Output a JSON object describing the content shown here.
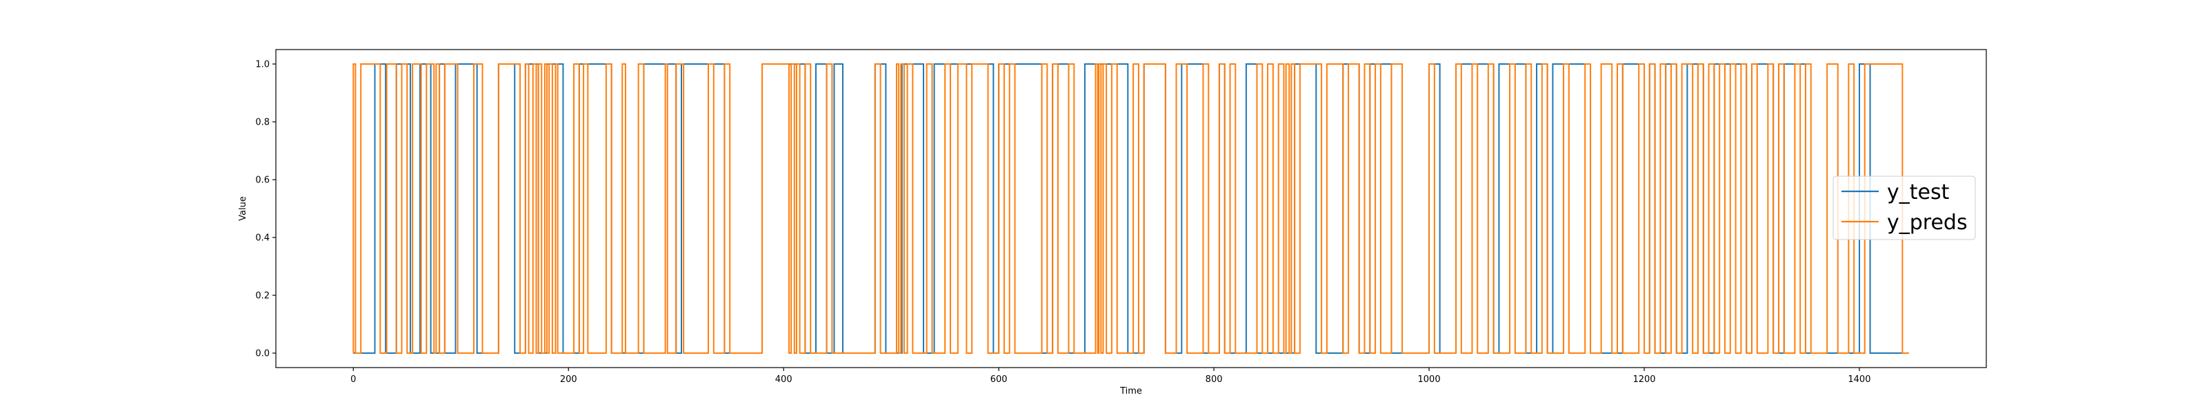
{
  "chart_data": {
    "type": "line",
    "title": "",
    "xlabel": "Time",
    "ylabel": "Value",
    "xlim": [
      -72,
      1518
    ],
    "ylim": [
      -0.05,
      1.05
    ],
    "x_ticks": [
      0,
      200,
      400,
      600,
      800,
      1000,
      1200,
      1400
    ],
    "y_ticks": [
      0.0,
      0.2,
      0.4,
      0.6,
      0.8,
      1.0
    ],
    "y_tick_labels": [
      "0.0",
      "0.2",
      "0.4",
      "0.6",
      "0.8",
      "1.0"
    ],
    "grid": false,
    "legend_position": "center-right",
    "x_end": 1446,
    "series": [
      {
        "name": "y_test",
        "color": "#1f77b4",
        "step_initial": 0,
        "step_changes": [
          20,
          30,
          40,
          53,
          62,
          72,
          80,
          85,
          95,
          115,
          135,
          150,
          160,
          172,
          180,
          195,
          210,
          240,
          270,
          300,
          305,
          345,
          380,
          420,
          430,
          440,
          447,
          455,
          485,
          495,
          510,
          530,
          540,
          595,
          600,
          640,
          650,
          665,
          680,
          720,
          735,
          755,
          770,
          790,
          805,
          810,
          830,
          840,
          875,
          895,
          920,
          935,
          945,
          965,
          1000,
          1010,
          1025,
          1060,
          1065,
          1090,
          1100,
          1110,
          1115,
          1150,
          1180,
          1200,
          1205,
          1210,
          1220,
          1230,
          1240,
          1255,
          1265,
          1295,
          1300,
          1320,
          1330,
          1350,
          1400,
          1410
        ]
      },
      {
        "name": "y_preds",
        "color": "#ff7f0e",
        "step_initial": 0,
        "step_changes": [
          0,
          2,
          7,
          25,
          31,
          40,
          45,
          50,
          55,
          63,
          68,
          75,
          77,
          80,
          85,
          97,
          112,
          120,
          135,
          155,
          160,
          163,
          167,
          170,
          172,
          175,
          178,
          180,
          182,
          185,
          188,
          190,
          205,
          210,
          214,
          218,
          235,
          240,
          250,
          253,
          265,
          270,
          290,
          292,
          300,
          307,
          330,
          335,
          345,
          350,
          380,
          405,
          407,
          410,
          412,
          415,
          420,
          425,
          440,
          445,
          485,
          490,
          505,
          507,
          509,
          512,
          515,
          520,
          533,
          538,
          550,
          555,
          562,
          570,
          575,
          590,
          600,
          605,
          610,
          615,
          640,
          645,
          650,
          655,
          665,
          670,
          690,
          692,
          693,
          695,
          697,
          700,
          705,
          710,
          725,
          730,
          735,
          755,
          765,
          775,
          790,
          795,
          805,
          810,
          815,
          820,
          840,
          845,
          850,
          855,
          860,
          865,
          867,
          870,
          872,
          875,
          880,
          900,
          905,
          920,
          925,
          935,
          940,
          945,
          950,
          955,
          965,
          975,
          1000,
          1005,
          1025,
          1030,
          1040,
          1045,
          1055,
          1060,
          1075,
          1080,
          1090,
          1095,
          1105,
          1110,
          1125,
          1130,
          1145,
          1150,
          1160,
          1170,
          1175,
          1180,
          1195,
          1200,
          1205,
          1210,
          1215,
          1220,
          1225,
          1230,
          1235,
          1245,
          1250,
          1255,
          1260,
          1265,
          1270,
          1275,
          1280,
          1285,
          1290,
          1295,
          1300,
          1305,
          1315,
          1320,
          1325,
          1330,
          1340,
          1345,
          1350,
          1355,
          1370,
          1380,
          1390,
          1395,
          1405,
          1440
        ]
      }
    ]
  }
}
